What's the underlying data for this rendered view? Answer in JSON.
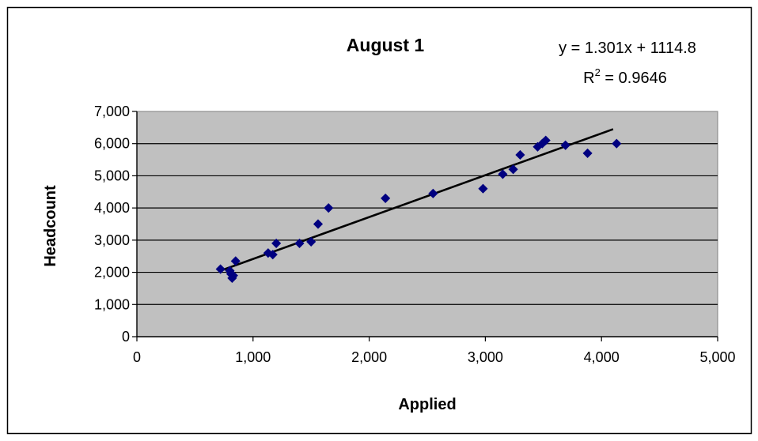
{
  "chart_data": {
    "type": "scatter",
    "title": "August 1",
    "xlabel": "Applied",
    "ylabel": "Headcount",
    "xlim": [
      0,
      5000
    ],
    "ylim": [
      0,
      7000
    ],
    "x_ticks": [
      "0",
      "1,000",
      "2,000",
      "3,000",
      "4,000",
      "5,000"
    ],
    "y_ticks": [
      "0",
      "1,000",
      "2,000",
      "3,000",
      "4,000",
      "5,000",
      "6,000",
      "7,000"
    ],
    "grid": "horizontal",
    "plot_background": "#c0c0c0",
    "marker_color": "#000080",
    "trendline": {
      "type": "linear",
      "slope": 1.301,
      "intercept": 1114.8,
      "x_range": [
        720,
        4100
      ],
      "equation": "y = 1.301x + 1114.8",
      "r2_prefix": "R",
      "r2_sup": "2",
      "r2_value": " = 0.9646"
    },
    "points": [
      {
        "x": 720,
        "y": 2100
      },
      {
        "x": 800,
        "y": 2050
      },
      {
        "x": 810,
        "y": 1950
      },
      {
        "x": 820,
        "y": 1820
      },
      {
        "x": 830,
        "y": 1900
      },
      {
        "x": 850,
        "y": 2350
      },
      {
        "x": 1130,
        "y": 2600
      },
      {
        "x": 1170,
        "y": 2550
      },
      {
        "x": 1200,
        "y": 2900
      },
      {
        "x": 1400,
        "y": 2900
      },
      {
        "x": 1500,
        "y": 2950
      },
      {
        "x": 1560,
        "y": 3500
      },
      {
        "x": 1650,
        "y": 4000
      },
      {
        "x": 2140,
        "y": 4300
      },
      {
        "x": 2550,
        "y": 4450
      },
      {
        "x": 2980,
        "y": 4600
      },
      {
        "x": 3150,
        "y": 5050
      },
      {
        "x": 3240,
        "y": 5200
      },
      {
        "x": 3300,
        "y": 5650
      },
      {
        "x": 3450,
        "y": 5900
      },
      {
        "x": 3490,
        "y": 6000
      },
      {
        "x": 3520,
        "y": 6100
      },
      {
        "x": 3690,
        "y": 5950
      },
      {
        "x": 3880,
        "y": 5700
      },
      {
        "x": 4130,
        "y": 6000
      }
    ]
  }
}
